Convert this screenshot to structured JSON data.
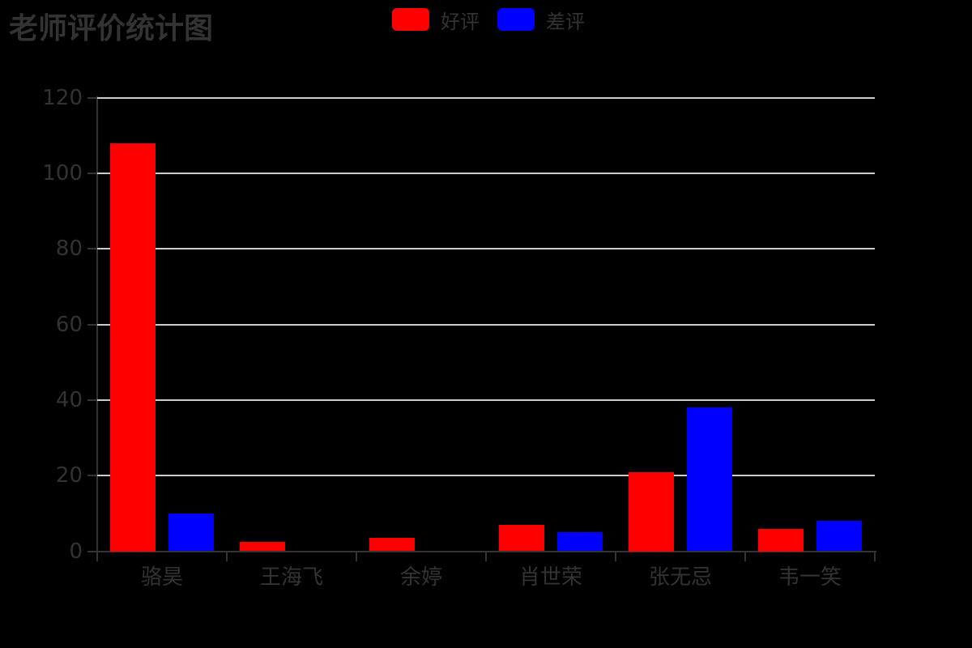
{
  "page": {
    "background_color": "#000000",
    "text_color": "#333333"
  },
  "chart_data": {
    "type": "bar",
    "title": "老师评价统计图",
    "categories": [
      "骆昊",
      "王海飞",
      "余婷",
      "肖世荣",
      "张无忌",
      "韦一笑"
    ],
    "series": [
      {
        "name": "好评",
        "color": "#ff0000",
        "values": [
          108,
          2.5,
          3.5,
          7,
          21,
          6
        ]
      },
      {
        "name": "差评",
        "color": "#0000ff",
        "values": [
          10,
          0,
          0,
          5,
          38,
          8
        ]
      }
    ],
    "xlabel": "",
    "ylabel": "",
    "ylim": [
      0,
      120
    ],
    "yticks": [
      0,
      20,
      40,
      60,
      80,
      100,
      120
    ],
    "grid": true,
    "legend_position": "top-center",
    "colors": {
      "grid_line": "#cccccc",
      "axis_line": "#333333",
      "label_text": "#333333",
      "title_text": "#333333"
    }
  }
}
